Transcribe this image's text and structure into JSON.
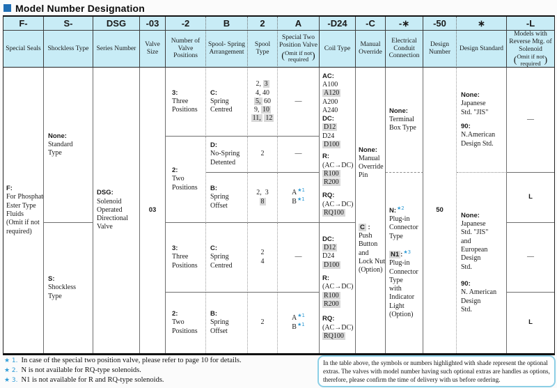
{
  "title": "Model Number Designation",
  "colors": {
    "header_bg": "#c8ecf6",
    "accent_blue": "#1f6eb4",
    "star_blue": "#2e9bd6",
    "shade_gray": "#d8d8d8",
    "note_border": "#8ccfe6"
  },
  "table": {
    "columns": [
      {
        "code": "F-",
        "desc": "Special Seals"
      },
      {
        "code": "S-",
        "desc": "Shockless Type"
      },
      {
        "code": "DSG",
        "desc": "Series Number"
      },
      {
        "code": "-03",
        "desc": "Valve Size"
      },
      {
        "code": "-2",
        "desc": "Number of Valve Positions"
      },
      {
        "code": "B",
        "desc": "Spool- Spring Arrangement"
      },
      {
        "code": "2",
        "desc": "Spool Type"
      },
      {
        "code": "A",
        "desc": "Special Two Position Valve",
        "note1": "Omit if not",
        "note2": "required"
      },
      {
        "code": "-D24",
        "desc": "Coil Type"
      },
      {
        "code": "-C",
        "desc": "Manual Override"
      },
      {
        "code": "-∗",
        "desc": "Electrical Conduit Connection"
      },
      {
        "code": "-50",
        "desc": "Design Number"
      },
      {
        "code": "∗",
        "desc": "Design Standard"
      },
      {
        "code": "-L",
        "desc": "Models with Reverse Mtg. of Solenoid",
        "note1": "Omit if not",
        "note2": "required"
      }
    ],
    "cells": {
      "special_seals": [
        {
          "p": [
            {
              "t": "F:",
              "b": 1
            }
          ]
        },
        {
          "p": [
            {
              "t": "For Phosphate"
            }
          ]
        },
        {
          "p": [
            {
              "t": "Ester Type"
            }
          ]
        },
        {
          "p": [
            {
              "t": "Fluids"
            }
          ]
        },
        {
          "p": [
            {
              "t": "(Omit if not"
            }
          ]
        },
        {
          "p": [
            {
              "t": "required)"
            }
          ]
        }
      ],
      "shockless_none": [
        {
          "p": [
            {
              "t": "None:",
              "b": 1
            }
          ]
        },
        {
          "p": [
            {
              "t": "Standard"
            }
          ]
        },
        {
          "p": [
            {
              "t": "Type"
            }
          ]
        }
      ],
      "shockless_s": [
        {
          "p": [
            {
              "t": "S:",
              "b": 1
            }
          ]
        },
        {
          "p": [
            {
              "t": "Shockless"
            }
          ]
        },
        {
          "p": [
            {
              "t": "Type"
            }
          ]
        }
      ],
      "series": [
        {
          "p": [
            {
              "t": "DSG:",
              "b": 1
            }
          ]
        },
        {
          "p": [
            {
              "t": "Solenoid"
            }
          ]
        },
        {
          "p": [
            {
              "t": "Operated"
            }
          ]
        },
        {
          "p": [
            {
              "t": "Directional"
            }
          ]
        },
        {
          "p": [
            {
              "t": "Valve"
            }
          ]
        }
      ],
      "valve_size": [
        {
          "p": [
            {
              "t": "03",
              "b": 1
            }
          ]
        }
      ],
      "positions_three": [
        {
          "p": [
            {
              "t": "3:",
              "b": 1
            }
          ]
        },
        {
          "p": [
            {
              "t": "Three"
            }
          ]
        },
        {
          "p": [
            {
              "t": "Positions"
            }
          ]
        }
      ],
      "positions_two": [
        {
          "p": [
            {
              "t": "2:",
              "b": 1
            }
          ]
        },
        {
          "p": [
            {
              "t": "Two"
            }
          ]
        },
        {
          "p": [
            {
              "t": "Positions"
            }
          ]
        }
      ],
      "arr_spring_centred": [
        {
          "p": [
            {
              "t": "C:",
              "b": 1
            }
          ]
        },
        {
          "p": [
            {
              "t": "Spring"
            }
          ]
        },
        {
          "p": [
            {
              "t": "Centred"
            }
          ]
        }
      ],
      "arr_no_spring": [
        {
          "p": [
            {
              "t": "D:",
              "b": 1
            }
          ]
        },
        {
          "p": [
            {
              "t": "No-Spring"
            }
          ]
        },
        {
          "p": [
            {
              "t": "Detented"
            }
          ]
        }
      ],
      "arr_spring_offset": [
        {
          "p": [
            {
              "t": "B:",
              "b": 1
            }
          ]
        },
        {
          "p": [
            {
              "t": "Spring"
            }
          ]
        },
        {
          "p": [
            {
              "t": "Offset"
            }
          ]
        }
      ],
      "spool_list_1": [
        {
          "p": [
            {
              "t": "2, "
            },
            {
              "t": "3",
              "sh": 1
            }
          ]
        },
        {
          "p": [
            {
              "t": "4, 40"
            }
          ]
        },
        {
          "p": [
            {
              "t": "5,",
              "sh": 1
            },
            {
              "t": " 60"
            }
          ]
        },
        {
          "p": [
            {
              "t": "9, "
            },
            {
              "t": "10",
              "sh": 1
            }
          ]
        },
        {
          "p": [
            {
              "t": "11,",
              "sh": 1
            },
            {
              "t": " "
            },
            {
              "t": "12",
              "sh": 1
            }
          ]
        }
      ],
      "spool_list_2": [
        {
          "p": [
            {
              "t": "2"
            }
          ]
        }
      ],
      "spool_list_3": [
        {
          "p": [
            {
              "t": "2,  3"
            }
          ]
        },
        {
          "p": [
            {
              "t": "8",
              "sh": 1
            }
          ]
        }
      ],
      "spool_list_4": [
        {
          "p": [
            {
              "t": "2"
            }
          ]
        },
        {
          "p": [
            {
              "t": "4"
            }
          ]
        }
      ],
      "spool_list_5": [
        {
          "p": [
            {
              "t": "2"
            }
          ]
        }
      ],
      "dash": [
        {
          "p": [
            {
              "t": "—"
            }
          ]
        }
      ],
      "special_ab": [
        {
          "p": [
            {
              "t": "A",
              "sup": "★1"
            }
          ]
        },
        {
          "p": [
            {
              "t": "B",
              "sup": "★1"
            }
          ]
        }
      ],
      "coil_top": [
        {
          "p": [
            {
              "t": "AC:",
              "b": 1
            }
          ]
        },
        {
          "p": [
            {
              "t": "A100"
            }
          ]
        },
        {
          "p": [
            {
              "t": "A120",
              "sh": 1
            }
          ]
        },
        {
          "p": [
            {
              "t": "A200"
            }
          ]
        },
        {
          "p": [
            {
              "t": "A240"
            }
          ]
        },
        {
          "p": [
            {
              "t": "DC:",
              "b": 1
            }
          ]
        },
        {
          "p": [
            {
              "t": "D12",
              "sh": 1
            }
          ]
        },
        {
          "p": [
            {
              "t": "D24"
            }
          ]
        },
        {
          "p": [
            {
              "t": "D100",
              "sh": 1
            }
          ]
        },
        {
          "mt": 5,
          "p": [
            {
              "t": "R:",
              "b": 1
            }
          ]
        },
        {
          "p": [
            {
              "t": "(AC→DC)"
            }
          ]
        },
        {
          "p": [
            {
              "t": "R100",
              "sh": 1
            }
          ]
        },
        {
          "p": [
            {
              "t": "R200",
              "sh": 1
            }
          ]
        },
        {
          "mt": 7,
          "p": [
            {
              "t": "RQ:",
              "b": 1
            }
          ]
        },
        {
          "p": [
            {
              "t": "(AC→DC)"
            }
          ]
        },
        {
          "p": [
            {
              "t": "RQ100",
              "sh": 1
            }
          ]
        }
      ],
      "coil_bottom": [
        {
          "p": [
            {
              "t": "DC:",
              "b": 1
            }
          ]
        },
        {
          "p": [
            {
              "t": "D12",
              "sh": 1
            }
          ]
        },
        {
          "p": [
            {
              "t": "D24"
            }
          ]
        },
        {
          "p": [
            {
              "t": "D100",
              "sh": 1
            }
          ]
        },
        {
          "mt": 7,
          "p": [
            {
              "t": "R:",
              "b": 1
            }
          ]
        },
        {
          "p": [
            {
              "t": "(AC→DC)"
            }
          ]
        },
        {
          "p": [
            {
              "t": "R100",
              "sh": 1
            }
          ]
        },
        {
          "p": [
            {
              "t": "R200",
              "sh": 1
            }
          ]
        },
        {
          "mt": 9,
          "p": [
            {
              "t": "RQ:",
              "b": 1
            }
          ]
        },
        {
          "p": [
            {
              "t": "(AC→DC)"
            }
          ]
        },
        {
          "p": [
            {
              "t": "RQ100",
              "sh": 1
            }
          ]
        }
      ],
      "manual_none": [
        {
          "p": [
            {
              "t": "None:",
              "b": 1
            }
          ]
        },
        {
          "p": [
            {
              "t": "Manual"
            }
          ]
        },
        {
          "p": [
            {
              "t": "Override"
            }
          ]
        },
        {
          "p": [
            {
              "t": "Pin"
            }
          ]
        }
      ],
      "manual_c": [
        {
          "p": [
            {
              "t": "C",
              "b": 1,
              "sh": 1
            },
            {
              "t": " :",
              "b": 1
            }
          ]
        },
        {
          "p": [
            {
              "t": "Push"
            }
          ]
        },
        {
          "p": [
            {
              "t": "Button"
            }
          ]
        },
        {
          "p": [
            {
              "t": "and"
            }
          ]
        },
        {
          "p": [
            {
              "t": "Lock Nut"
            }
          ]
        },
        {
          "p": [
            {
              "t": "(Option)"
            }
          ]
        }
      ],
      "conduit_none": [
        {
          "p": [
            {
              "t": "None:",
              "b": 1
            }
          ]
        },
        {
          "p": [
            {
              "t": "Terminal"
            }
          ]
        },
        {
          "p": [
            {
              "t": "Box Type"
            }
          ]
        }
      ],
      "conduit_n": [
        {
          "p": [
            {
              "t": "N:",
              "b": 1,
              "sup": "★2"
            }
          ]
        },
        {
          "p": [
            {
              "t": "Plug-in"
            }
          ]
        },
        {
          "p": [
            {
              "t": "Connector"
            }
          ]
        },
        {
          "p": [
            {
              "t": "Type"
            }
          ]
        }
      ],
      "conduit_n1": [
        {
          "p": [
            {
              "t": "N1",
              "b": 1,
              "sh": 1
            },
            {
              "t": ":",
              "b": 1,
              "sup": "★3"
            }
          ]
        },
        {
          "p": [
            {
              "t": "Plug-in"
            }
          ]
        },
        {
          "p": [
            {
              "t": "Connector"
            }
          ]
        },
        {
          "p": [
            {
              "t": "Type"
            }
          ]
        },
        {
          "p": [
            {
              "t": "with"
            }
          ]
        },
        {
          "p": [
            {
              "t": "Indicator"
            }
          ]
        },
        {
          "p": [
            {
              "t": "Light"
            }
          ]
        },
        {
          "p": [
            {
              "t": "(Option)"
            }
          ]
        }
      ],
      "design_number": [
        {
          "p": [
            {
              "t": "50",
              "b": 1
            }
          ]
        }
      ],
      "std_top": [
        {
          "p": [
            {
              "t": "None:",
              "b": 1
            }
          ]
        },
        {
          "p": [
            {
              "t": "Japanese"
            }
          ]
        },
        {
          "p": [
            {
              "t": "Std. \"JIS\""
            }
          ]
        },
        {
          "mt": 8,
          "p": [
            {
              "t": "90:",
              "b": 1
            }
          ]
        },
        {
          "p": [
            {
              "t": "N.American"
            }
          ]
        },
        {
          "p": [
            {
              "t": "Design Std."
            }
          ]
        }
      ],
      "std_bottom": [
        {
          "p": [
            {
              "t": "None:",
              "b": 1
            }
          ]
        },
        {
          "p": [
            {
              "t": "Japanese"
            }
          ]
        },
        {
          "p": [
            {
              "t": "Std. \"JIS\""
            }
          ]
        },
        {
          "p": [
            {
              "t": "and"
            }
          ]
        },
        {
          "p": [
            {
              "t": "European"
            }
          ]
        },
        {
          "p": [
            {
              "t": "Design"
            }
          ]
        },
        {
          "p": [
            {
              "t": "Std."
            }
          ]
        },
        {
          "mt": 12,
          "p": [
            {
              "t": "90:",
              "b": 1
            }
          ]
        },
        {
          "p": [
            {
              "t": "N. American"
            }
          ]
        },
        {
          "p": [
            {
              "t": "Design"
            }
          ]
        },
        {
          "p": [
            {
              "t": "Std."
            }
          ]
        }
      ],
      "rev_l": [
        {
          "p": [
            {
              "t": "L",
              "b": 1
            }
          ]
        }
      ]
    }
  },
  "footnotes": [
    {
      "mark": "★ 1.",
      "text": "In case of the special two position valve, please refer to page 10 for details."
    },
    {
      "mark": "★ 2.",
      "text": "N is not available for RQ-type solenoids."
    },
    {
      "mark": "★ 3.",
      "text": "N1 is not available for R and RQ-type solenoids."
    }
  ],
  "note_box": {
    "text": "In the table above, the symbols or numbers highlighted with shade represent the optional extras.  The valves with model number having such optional extras are handles as options, therefore, please confirm the time of delivery with us before ordering."
  }
}
